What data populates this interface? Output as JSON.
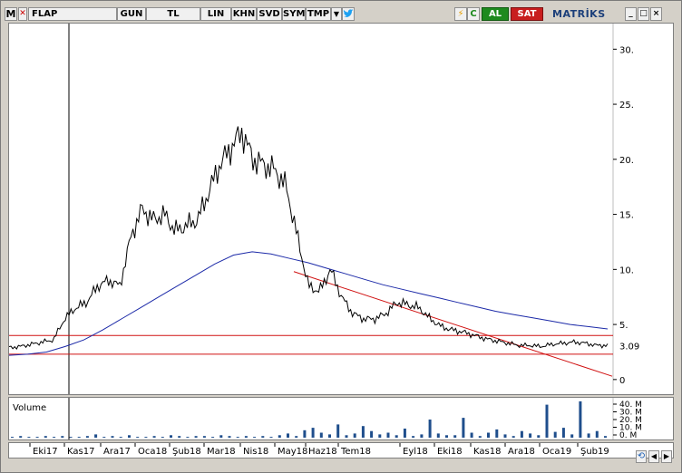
{
  "toolbar": {
    "m_label": "M",
    "symbol": "FLAP",
    "period": "GUN",
    "currency": "TL",
    "scale": "LIN",
    "khn": "KHN",
    "svd": "SVD",
    "sym": "SYM",
    "tmp": "TMP",
    "dropdown_icon": "triangle-down-icon",
    "twitter_icon": "bird-icon",
    "bolt_icon": "lightning-icon",
    "refresh_icon": "c-refresh-icon",
    "buy_label": "AL",
    "sell_label": "SAT",
    "brand": "MATRİKS",
    "window_buttons": [
      "_",
      "□",
      "×"
    ],
    "buy_color": "#1e8a1e",
    "sell_color": "#c81e1e"
  },
  "price_axis": {
    "ticks": [
      {
        "value": 30,
        "label": "30."
      },
      {
        "value": 25,
        "label": "25."
      },
      {
        "value": 20,
        "label": "20."
      },
      {
        "value": 15,
        "label": "15."
      },
      {
        "value": 10,
        "label": "10."
      },
      {
        "value": 5,
        "label": "5."
      },
      {
        "value": 0,
        "label": "0"
      }
    ],
    "current_price_label": "3.09",
    "current_price": 3.09
  },
  "volume_pane": {
    "title": "Volume",
    "ticks": [
      "40. M",
      "30. M",
      "20. M",
      "10. M",
      "0. M"
    ]
  },
  "date_axis": {
    "labels": [
      "Eki17",
      "Kas17",
      "Ara17",
      "Oca18",
      "Şub18",
      "Mar18",
      "Nis18",
      "May18",
      "Haz18",
      "Tem18",
      "Eyl18",
      "Eki18",
      "Kas18",
      "Ara18",
      "Oca19",
      "Şub19"
    ]
  },
  "chart_data": {
    "type": "line",
    "title": "",
    "series": [
      {
        "values": [
          2.9,
          3.0,
          3.2,
          3.4,
          3.6,
          5.5,
          6.5,
          7.0,
          8.5,
          9.0,
          8.5,
          13.0,
          15.5,
          14.5,
          15.0,
          13.5,
          14.0,
          14.5,
          17.0,
          19.5,
          21.0,
          22.5,
          20.0,
          19.5,
          19.0,
          17.5,
          13.0,
          8.5,
          8.0,
          10.0,
          7.5,
          6.0,
          5.5,
          5.5,
          6.0,
          7.0,
          6.8,
          6.5,
          5.5,
          4.8,
          4.5,
          4.3,
          4.0,
          3.7,
          3.5,
          3.3,
          3.1,
          3.1,
          3.0,
          3.2,
          3.3,
          3.4,
          3.3,
          3.1,
          3.1
        ]
      },
      {
        "values": [
          2.2,
          2.3,
          2.5,
          3.0,
          3.6,
          4.5,
          5.5,
          6.5,
          7.5,
          8.5,
          9.5,
          10.5,
          11.3,
          11.6,
          11.4,
          11.0,
          10.6,
          10.1,
          9.6,
          9.1,
          8.6,
          8.2,
          7.8,
          7.4,
          7.0,
          6.6,
          6.2,
          5.9,
          5.6,
          5.3,
          5.0,
          4.8,
          4.6
        ]
      }
    ],
    "horizontal_lines": [
      4.0,
      2.3
    ],
    "trendline": {
      "from": {
        "date": "May18",
        "value": 9.8
      },
      "to": {
        "date": "Şub19",
        "value": 0.3
      }
    },
    "volume_values": [
      1,
      2,
      1,
      1,
      2,
      1,
      2,
      1,
      1,
      2,
      4,
      1,
      2,
      1,
      3,
      1,
      1,
      2,
      1,
      3,
      2,
      1,
      2,
      2,
      1,
      3,
      2,
      1,
      2,
      1,
      2,
      1,
      3,
      5,
      2,
      9,
      12,
      6,
      4,
      16,
      3,
      5,
      14,
      8,
      4,
      6,
      3,
      11,
      2,
      4,
      22,
      5,
      3,
      3,
      24,
      6,
      2,
      6,
      10,
      4,
      2,
      8,
      5,
      3,
      40,
      7,
      12,
      4,
      44,
      5,
      8,
      2
    ],
    "ylim": [
      -1,
      32
    ]
  }
}
